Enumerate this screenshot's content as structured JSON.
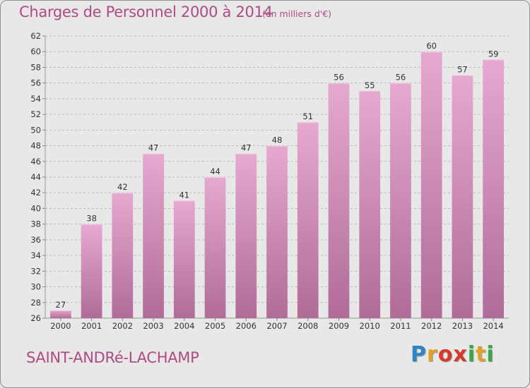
{
  "chart_data": {
    "type": "bar",
    "title": "Charges de Personnel 2000 à 2014",
    "subtitle": "(en milliers d'€)",
    "categories": [
      "2000",
      "2001",
      "2002",
      "2003",
      "2004",
      "2005",
      "2006",
      "2007",
      "2008",
      "2009",
      "2010",
      "2011",
      "2012",
      "2013",
      "2014"
    ],
    "values": [
      27,
      38,
      42,
      47,
      41,
      44,
      47,
      48,
      51,
      56,
      55,
      56,
      60,
      57,
      59
    ],
    "ylim": [
      26,
      62
    ],
    "yticks": [
      26,
      28,
      30,
      32,
      34,
      36,
      38,
      40,
      42,
      44,
      46,
      48,
      50,
      52,
      54,
      56,
      58,
      60,
      62
    ],
    "grid": "horizontal-dashed",
    "xlabel": "",
    "ylabel": ""
  },
  "commune": "SAINT-ANDRé-LACHAMP",
  "logo": {
    "letters": [
      "P",
      "r",
      "o",
      "x",
      "i",
      "t",
      "i"
    ]
  },
  "colors": {
    "bar_light": "#e6a9cf",
    "bar_dark": "#b06c97",
    "text_accent": "#b04a83",
    "grid": "#b8b8b8"
  }
}
